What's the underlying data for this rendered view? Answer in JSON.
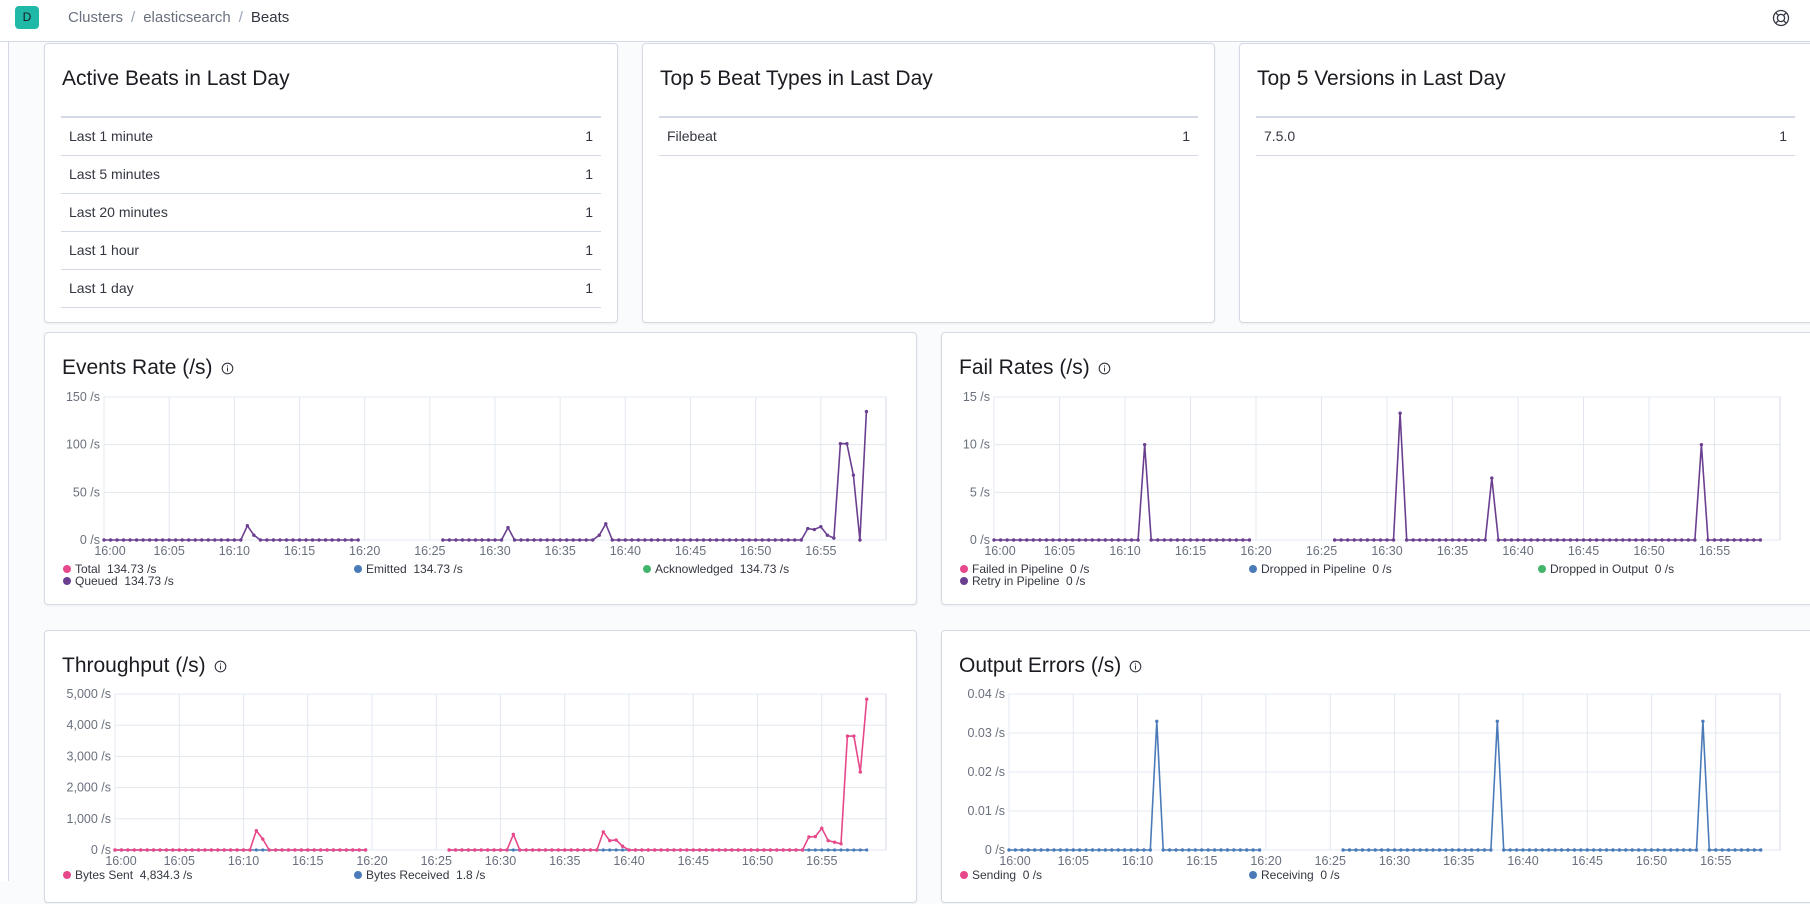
{
  "header": {
    "avatar_letter": "D",
    "breadcrumbs": [
      "Clusters",
      "elasticsearch",
      "Beats"
    ],
    "help_icon": "help-lifebuoy-icon"
  },
  "summary": {
    "active": {
      "title": "Active Beats in Last Day",
      "rows": [
        {
          "label": "Last 1 minute",
          "value": "1"
        },
        {
          "label": "Last 5 minutes",
          "value": "1"
        },
        {
          "label": "Last 20 minutes",
          "value": "1"
        },
        {
          "label": "Last 1 hour",
          "value": "1"
        },
        {
          "label": "Last 1 day",
          "value": "1"
        }
      ]
    },
    "types": {
      "title": "Top 5 Beat Types in Last Day",
      "rows": [
        {
          "label": "Filebeat",
          "value": "1"
        }
      ]
    },
    "versions": {
      "title": "Top 5 Versions in Last Day",
      "rows": [
        {
          "label": "7.5.0",
          "value": "1"
        }
      ]
    }
  },
  "colors": {
    "pink": "#e7488b",
    "blue": "#4a7bb8",
    "green": "#43b56b",
    "purple": "#6b3f8f"
  },
  "chart_data": [
    {
      "id": "events",
      "title": "Events Rate (/s)",
      "type": "line",
      "unit": "/s",
      "ylim": [
        0,
        150
      ],
      "yticks": [
        "0 /s",
        "50 /s",
        "100 /s",
        "150 /s"
      ],
      "yvals": [
        0,
        50,
        100,
        150
      ],
      "xticks": [
        "16:00",
        "16:05",
        "16:10",
        "16:15",
        "16:20",
        "16:25",
        "16:30",
        "16:35",
        "16:40",
        "16:45",
        "16:50",
        "16:55"
      ],
      "grid": true,
      "legend": [
        {
          "name": "Total",
          "value": "134.73 /s",
          "color": "#e7488b"
        },
        {
          "name": "Emitted",
          "value": "134.73 /s",
          "color": "#4a7bb8"
        },
        {
          "name": "Acknowledged",
          "value": "134.73 /s",
          "color": "#43b56b"
        },
        {
          "name": "Queued",
          "value": "134.73 /s",
          "color": "#6b3f8f"
        }
      ],
      "segments": [
        {
          "start": "16:00",
          "end": "16:19.5"
        },
        {
          "start": "16:26",
          "end": "16:58.5"
        }
      ],
      "spikes": [
        {
          "t": "16:11",
          "v": 15
        },
        {
          "t": "16:11.5",
          "v": 5
        },
        {
          "t": "16:31",
          "v": 13
        },
        {
          "t": "16:38",
          "v": 5
        },
        {
          "t": "16:38.5",
          "v": 17
        },
        {
          "t": "16:54",
          "v": 12
        },
        {
          "t": "16:54.5",
          "v": 11
        },
        {
          "t": "16:55",
          "v": 14
        },
        {
          "t": "16:55.5",
          "v": 5
        },
        {
          "t": "16:56",
          "v": 2
        },
        {
          "t": "16:56.5",
          "v": 101
        },
        {
          "t": "16:57",
          "v": 101
        },
        {
          "t": "16:57.5",
          "v": 68
        },
        {
          "t": "16:58.5",
          "v": 134.7
        }
      ],
      "series_color": "#6b3f8f"
    },
    {
      "id": "fail",
      "title": "Fail Rates (/s)",
      "type": "line",
      "unit": "/s",
      "ylim": [
        0,
        15
      ],
      "yticks": [
        "0 /s",
        "5 /s",
        "10 /s",
        "15 /s"
      ],
      "yvals": [
        0,
        5,
        10,
        15
      ],
      "xticks": [
        "16:00",
        "16:05",
        "16:10",
        "16:15",
        "16:20",
        "16:25",
        "16:30",
        "16:35",
        "16:40",
        "16:45",
        "16:50",
        "16:55"
      ],
      "grid": true,
      "legend": [
        {
          "name": "Failed in Pipeline",
          "value": "0 /s",
          "color": "#e7488b"
        },
        {
          "name": "Dropped in Pipeline",
          "value": "0 /s",
          "color": "#4a7bb8"
        },
        {
          "name": "Dropped in Output",
          "value": "0 /s",
          "color": "#43b56b"
        },
        {
          "name": "Retry in Pipeline",
          "value": "0 /s",
          "color": "#6b3f8f"
        }
      ],
      "segments": [
        {
          "start": "16:00",
          "end": "16:19.5"
        },
        {
          "start": "16:26",
          "end": "16:58.5"
        }
      ],
      "spikes": [
        {
          "t": "16:11.5",
          "v": 10
        },
        {
          "t": "16:31",
          "v": 13.3
        },
        {
          "t": "16:38",
          "v": 6.5
        },
        {
          "t": "16:54",
          "v": 10
        }
      ],
      "series_color": "#6b3f8f"
    },
    {
      "id": "throughput",
      "title": "Throughput (/s)",
      "type": "line",
      "unit": "/s",
      "ylim": [
        0,
        5000
      ],
      "yticks": [
        "0 /s",
        "1,000 /s",
        "2,000 /s",
        "3,000 /s",
        "4,000 /s",
        "5,000 /s"
      ],
      "yvals": [
        0,
        1000,
        2000,
        3000,
        4000,
        5000
      ],
      "xticks": [
        "16:00",
        "16:05",
        "16:10",
        "16:15",
        "16:20",
        "16:25",
        "16:30",
        "16:35",
        "16:40",
        "16:45",
        "16:50",
        "16:55"
      ],
      "grid": true,
      "legend": [
        {
          "name": "Bytes Sent",
          "value": "4,834.3 /s",
          "color": "#e7488b"
        },
        {
          "name": "Bytes Received",
          "value": "1.8 /s",
          "color": "#4a7bb8"
        }
      ],
      "segments": [
        {
          "start": "16:00",
          "end": "16:19.5"
        },
        {
          "start": "16:26",
          "end": "16:58.5"
        }
      ],
      "spikes": [
        {
          "t": "16:11",
          "v": 620
        },
        {
          "t": "16:11.5",
          "v": 350
        },
        {
          "t": "16:31",
          "v": 500
        },
        {
          "t": "16:38",
          "v": 580
        },
        {
          "t": "16:38.5",
          "v": 300
        },
        {
          "t": "16:39",
          "v": 320
        },
        {
          "t": "16:39.5",
          "v": 120
        },
        {
          "t": "16:54",
          "v": 420
        },
        {
          "t": "16:54.5",
          "v": 430
        },
        {
          "t": "16:55",
          "v": 700
        },
        {
          "t": "16:55.5",
          "v": 300
        },
        {
          "t": "16:56",
          "v": 250
        },
        {
          "t": "16:56.5",
          "v": 200
        },
        {
          "t": "16:57",
          "v": 3650
        },
        {
          "t": "16:57.5",
          "v": 3650
        },
        {
          "t": "16:58",
          "v": 2500
        },
        {
          "t": "16:58.5",
          "v": 4834.3
        }
      ],
      "series_color": "#e7488b",
      "base_color": "#4a7bb8"
    },
    {
      "id": "outerr",
      "title": "Output Errors (/s)",
      "type": "line",
      "unit": "/s",
      "ylim": [
        0,
        0.04
      ],
      "yticks": [
        "0 /s",
        "0.01 /s",
        "0.02 /s",
        "0.03 /s",
        "0.04 /s"
      ],
      "yvals": [
        0,
        0.01,
        0.02,
        0.03,
        0.04
      ],
      "xticks": [
        "16:00",
        "16:05",
        "16:10",
        "16:15",
        "16:20",
        "16:25",
        "16:30",
        "16:35",
        "16:40",
        "16:45",
        "16:50",
        "16:55"
      ],
      "grid": true,
      "legend": [
        {
          "name": "Sending",
          "value": "0 /s",
          "color": "#e7488b"
        },
        {
          "name": "Receiving",
          "value": "0 /s",
          "color": "#4a7bb8"
        }
      ],
      "segments": [
        {
          "start": "16:00",
          "end": "16:19.5"
        },
        {
          "start": "16:26",
          "end": "16:58.5"
        }
      ],
      "spikes": [
        {
          "t": "16:11.5",
          "v": 0.033
        },
        {
          "t": "16:38",
          "v": 0.033
        },
        {
          "t": "16:54",
          "v": 0.033
        }
      ],
      "series_color": "#4a7bb8"
    }
  ]
}
